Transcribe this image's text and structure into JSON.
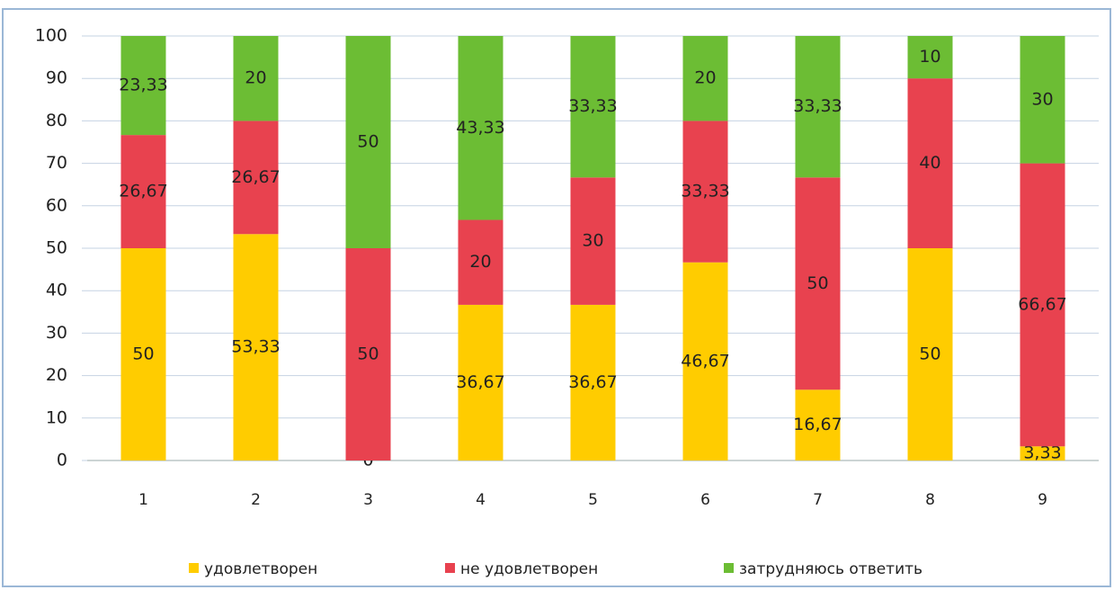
{
  "chart_data": {
    "type": "stacked_bar",
    "categories": [
      "1",
      "2",
      "3",
      "4",
      "5",
      "6",
      "7",
      "8",
      "9"
    ],
    "series": [
      {
        "name": "удовлетворен",
        "color": "#ffcc00",
        "values": [
          50,
          53.33,
          0,
          36.67,
          36.67,
          46.67,
          16.67,
          50,
          3.33
        ],
        "value_labels": [
          "50",
          "53,33",
          "0",
          "36,67",
          "36,67",
          "46,67",
          "16,67",
          "50",
          "3,33"
        ]
      },
      {
        "name": "не удовлетворен",
        "color": "#e8424f",
        "values": [
          26.67,
          26.67,
          50,
          20,
          30,
          33.33,
          50,
          40,
          66.67
        ],
        "value_labels": [
          "26,67",
          "26,67",
          "50",
          "20",
          "30",
          "33,33",
          "50",
          "40",
          "66,67"
        ]
      },
      {
        "name": "затрудняюсь ответить",
        "color": "#6cbd34",
        "values": [
          23.33,
          20,
          50,
          43.33,
          33.33,
          20,
          33.33,
          10,
          30
        ],
        "value_labels": [
          "23,33",
          "20",
          "50",
          "43,33",
          "33,33",
          "20",
          "33,33",
          "10",
          "30"
        ]
      }
    ],
    "ylim": [
      0,
      100
    ],
    "yticks": [
      0,
      10,
      20,
      30,
      40,
      50,
      60,
      70,
      80,
      90,
      100
    ],
    "grid": true,
    "legend": "bottom"
  }
}
